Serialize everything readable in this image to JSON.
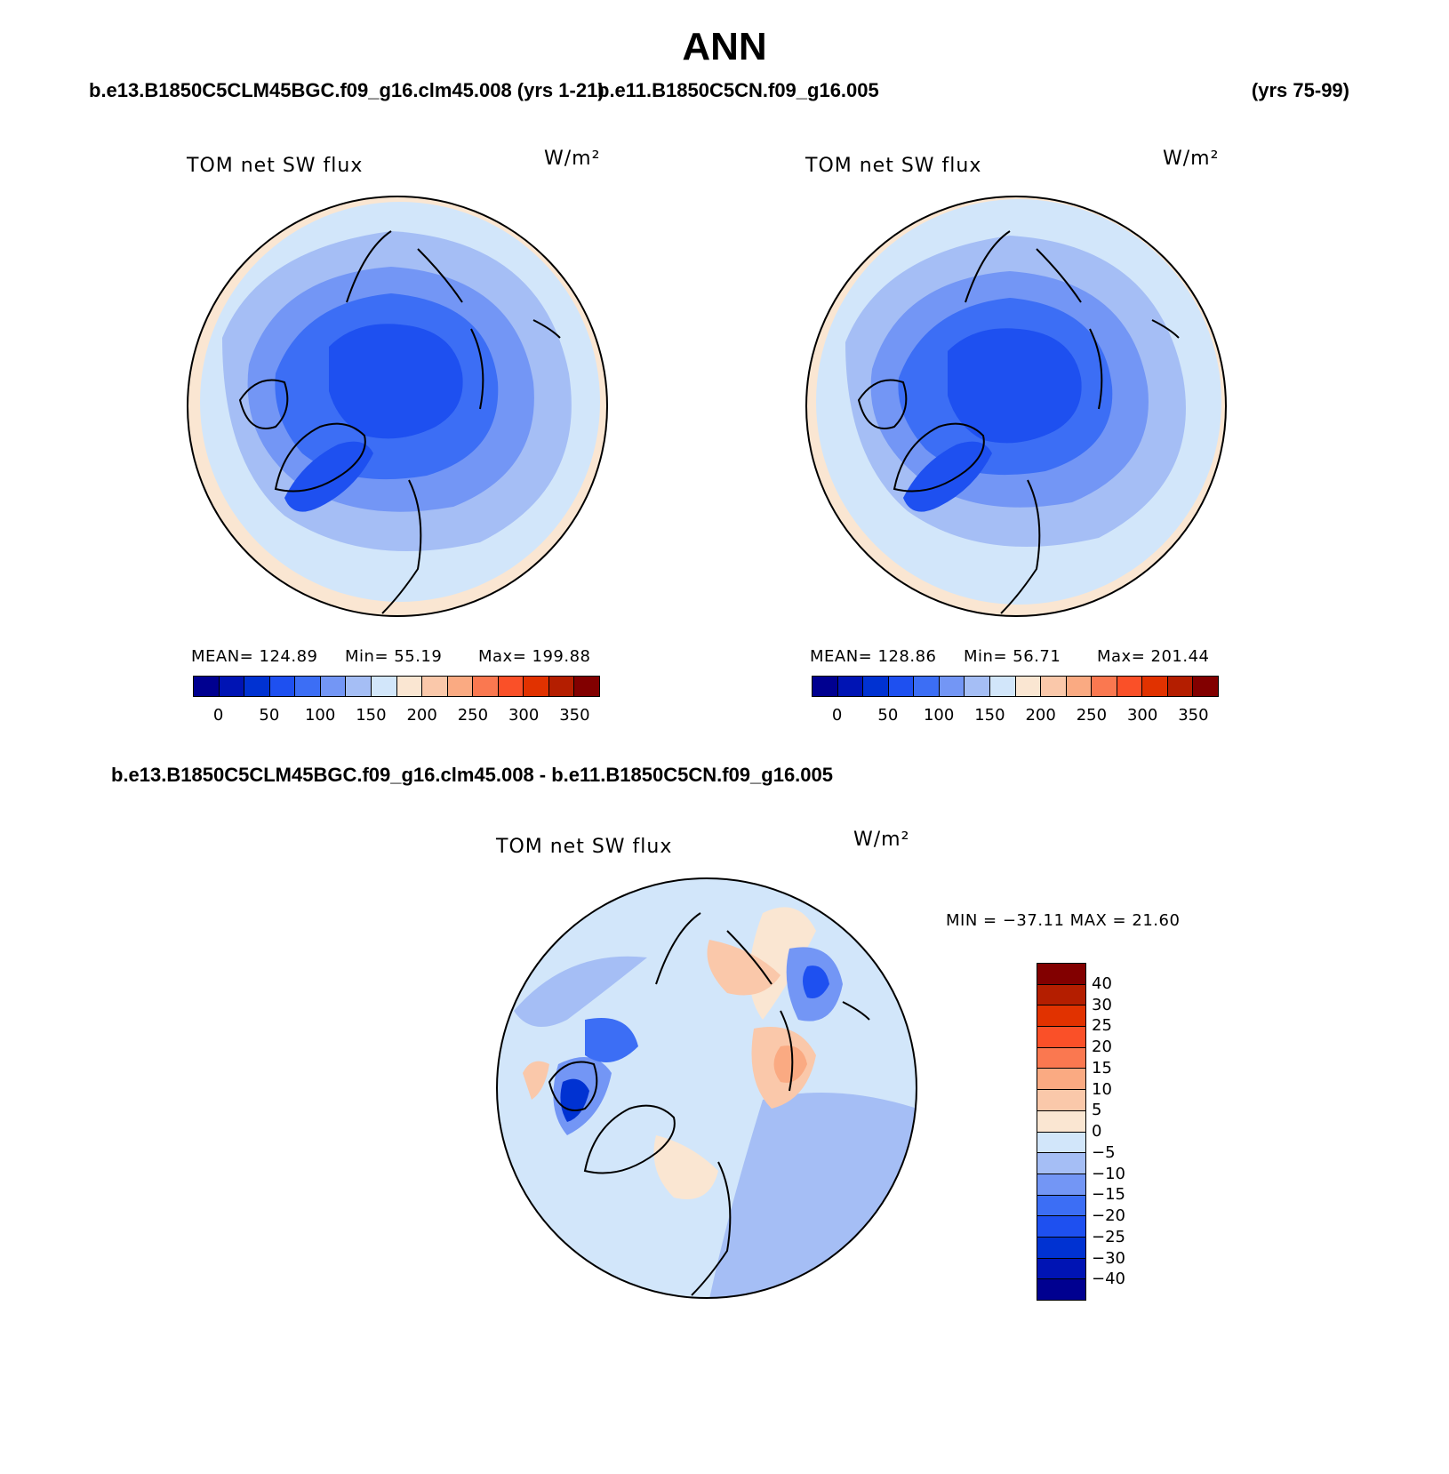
{
  "title": "ANN",
  "case_left": "b.e13.B1850C5CLM45BGC.f09_g16.clm45.008 (yrs 1-21)",
  "case_middle": "b.e11.B1850C5CN.f09_g16.005",
  "case_right": "(yrs 75-99)",
  "diff_title": "b.e13.B1850C5CLM45BGC.f09_g16.clm45.008 - b.e11.B1850C5CN.f09_g16.005",
  "variable": "TOM net SW flux",
  "units": "W/m²",
  "panel1": {
    "mean": "MEAN= 124.89",
    "min": "Min=  55.19",
    "max": "Max= 199.88"
  },
  "panel2": {
    "mean": "MEAN= 128.86",
    "min": "Min=  56.71",
    "max": "Max= 201.44"
  },
  "diff_stats": "MIN = −37.11  MAX =  21.60",
  "abs_colorbar": {
    "labels": [
      "0",
      "50",
      "100",
      "150",
      "200",
      "250",
      "300",
      "350"
    ],
    "colors": [
      "#000090",
      "#0014b4",
      "#0032d2",
      "#1e50f0",
      "#3c6ef5",
      "#7396f5",
      "#a5bef5",
      "#d2e6fa",
      "#fae6d2",
      "#fac8aa",
      "#faaa82",
      "#fa7850",
      "#fa5028",
      "#e13200",
      "#b41e00",
      "#820000"
    ]
  },
  "diff_colorbar": {
    "labels": [
      "40",
      "30",
      "25",
      "20",
      "15",
      "10",
      "5",
      "0",
      "−5",
      "−10",
      "−15",
      "−20",
      "−25",
      "−30",
      "−40"
    ],
    "colors": [
      "#820000",
      "#b41e00",
      "#e13200",
      "#fa5028",
      "#fa7850",
      "#faaa82",
      "#fac8aa",
      "#fae6d2",
      "#d2e6fa",
      "#a5bef5",
      "#7396f5",
      "#3c6ef5",
      "#1e50f0",
      "#0032d2",
      "#0014b4",
      "#000090"
    ]
  }
}
